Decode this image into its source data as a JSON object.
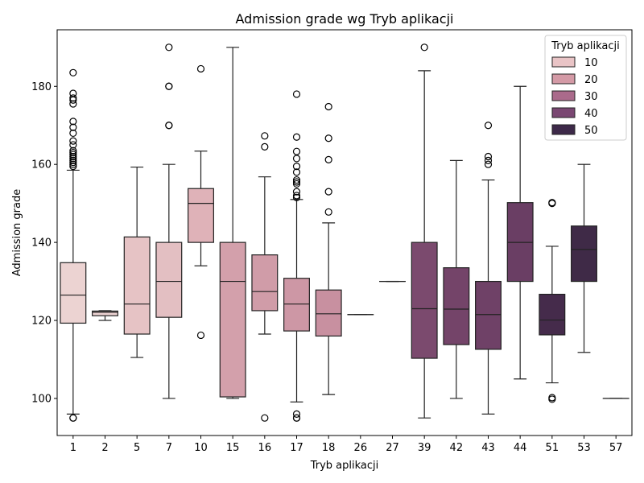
{
  "chart_data": {
    "type": "boxplot",
    "title": "Admission grade wg Tryb aplikacji",
    "xlabel": "Tryb aplikacji",
    "ylabel": "Admission grade",
    "ylim": [
      90,
      195
    ],
    "yticks": [
      100,
      120,
      140,
      160,
      180
    ],
    "grid": false,
    "legend": {
      "title": "Tryb aplikacji",
      "placement": "top-right",
      "entries": [
        {
          "label": "10",
          "color": "#e9c4c6"
        },
        {
          "label": "20",
          "color": "#d49aa6"
        },
        {
          "label": "30",
          "color": "#aa6a8b"
        },
        {
          "label": "40",
          "color": "#7a4772"
        },
        {
          "label": "50",
          "color": "#3d2949"
        }
      ]
    },
    "categories": [
      "1",
      "2",
      "5",
      "7",
      "10",
      "15",
      "16",
      "17",
      "18",
      "26",
      "27",
      "39",
      "42",
      "43",
      "44",
      "51",
      "53",
      "57"
    ],
    "boxes": [
      {
        "category": "1",
        "color": "#ecd3d2",
        "whislo": 96,
        "q1": 119.3,
        "med": 126.5,
        "q3": 134.8,
        "whishi": 158.5,
        "fliers": [
          95,
          95,
          159.5,
          160,
          160.5,
          161,
          161.5,
          162,
          162.5,
          163,
          163.5,
          165,
          166,
          168,
          169.5,
          171,
          175.5,
          176.5,
          177,
          178.2,
          183.5
        ]
      },
      {
        "category": "2",
        "color": "#ead0d0",
        "whislo": 120,
        "q1": 121.2,
        "med": 122.1,
        "q3": 122.4,
        "whishi": 122.5,
        "fliers": []
      },
      {
        "category": "5",
        "color": "#e6c3c5",
        "whislo": 110.5,
        "q1": 116.5,
        "med": 124.2,
        "q3": 141.4,
        "whishi": 159.3,
        "fliers": []
      },
      {
        "category": "7",
        "color": "#e3bfc2",
        "whislo": 100,
        "q1": 120.8,
        "med": 130,
        "q3": 140,
        "whishi": 160,
        "fliers": [
          170,
          170,
          180,
          180,
          190
        ]
      },
      {
        "category": "10",
        "color": "#dfb2b8",
        "whislo": 134,
        "q1": 140,
        "med": 150,
        "q3": 153.8,
        "whishi": 163.4,
        "fliers": [
          116.2,
          184.5
        ]
      },
      {
        "category": "15",
        "color": "#d3a0ab",
        "whislo": 100,
        "q1": 100.4,
        "med": 130,
        "q3": 140,
        "whishi": 190,
        "fliers": []
      },
      {
        "category": "16",
        "color": "#d09ca8",
        "whislo": 116.5,
        "q1": 122.5,
        "med": 127.4,
        "q3": 136.8,
        "whishi": 156.8,
        "fliers": [
          95,
          164.5,
          167.3
        ]
      },
      {
        "category": "17",
        "color": "#cd97a5",
        "whislo": 99.1,
        "q1": 117.3,
        "med": 124.2,
        "q3": 130.8,
        "whishi": 151,
        "fliers": [
          95,
          95,
          96,
          151.5,
          152,
          153,
          155,
          155.5,
          156,
          158,
          159.5,
          161.5,
          163.3,
          167,
          178
        ]
      },
      {
        "category": "18",
        "color": "#c890a0",
        "whislo": 101,
        "q1": 116,
        "med": 121.7,
        "q3": 127.8,
        "whishi": 145,
        "fliers": [
          147.8,
          153,
          161.2,
          166.7,
          174.8
        ]
      },
      {
        "category": "26",
        "color": "#c48b9c",
        "whislo": 121.5,
        "q1": 121.5,
        "med": 121.5,
        "q3": 121.5,
        "whishi": 121.5,
        "fliers": []
      },
      {
        "category": "27",
        "color": "#c28899",
        "whislo": 130,
        "q1": 130,
        "med": 130,
        "q3": 130,
        "whishi": 130,
        "fliers": []
      },
      {
        "category": "39",
        "color": "#7b4a6e",
        "whislo": 95,
        "q1": 110.3,
        "med": 123,
        "q3": 140,
        "whishi": 184,
        "fliers": [
          190
        ]
      },
      {
        "category": "42",
        "color": "#744469",
        "whislo": 100,
        "q1": 113.8,
        "med": 122.9,
        "q3": 133.5,
        "whishi": 161,
        "fliers": []
      },
      {
        "category": "43",
        "color": "#6f4167",
        "whislo": 96,
        "q1": 112.6,
        "med": 121.5,
        "q3": 130,
        "whishi": 156,
        "fliers": [
          160,
          161,
          162,
          170
        ]
      },
      {
        "category": "44",
        "color": "#6a3e64",
        "whislo": 105,
        "q1": 130,
        "med": 140,
        "q3": 150.2,
        "whishi": 180,
        "fliers": []
      },
      {
        "category": "51",
        "color": "#452b4b",
        "whislo": 104,
        "q1": 116.3,
        "med": 120.1,
        "q3": 126.7,
        "whishi": 139,
        "fliers": [
          99.8,
          100.2,
          150,
          150.2
        ]
      },
      {
        "category": "53",
        "color": "#3f2a47",
        "whislo": 111.8,
        "q1": 130,
        "med": 138.2,
        "q3": 144.2,
        "whishi": 160,
        "fliers": []
      },
      {
        "category": "57",
        "color": "#36243f",
        "whislo": 100,
        "q1": 100,
        "med": 100,
        "q3": 100,
        "whishi": 100,
        "fliers": []
      }
    ]
  }
}
